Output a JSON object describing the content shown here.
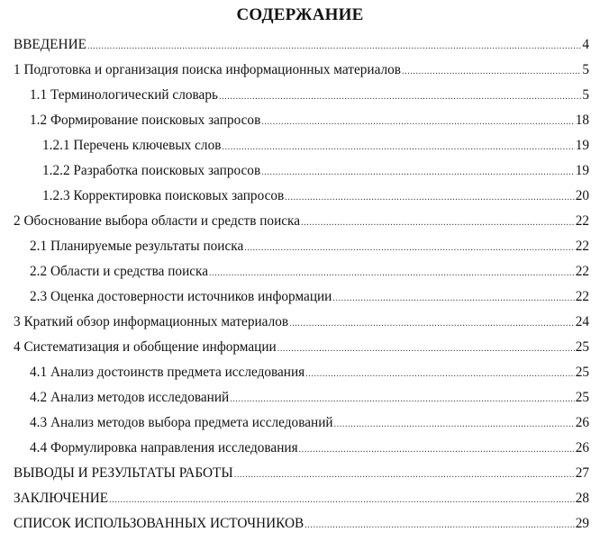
{
  "title": "СОДЕРЖАНИЕ",
  "entries": [
    {
      "label": "ВВЕДЕНИЕ",
      "page": "4",
      "level": 0
    },
    {
      "label": "1 Подготовка и организация поиска информационных материалов",
      "page": "5",
      "level": 0
    },
    {
      "label": "1.1 Терминологический словарь",
      "page": "5",
      "level": 1
    },
    {
      "label": "1.2 Формирование поисковых запросов",
      "page": "18",
      "level": 1
    },
    {
      "label": "1.2.1 Перечень ключевых слов",
      "page": "19",
      "level": 2
    },
    {
      "label": "1.2.2 Разработка поисковых запросов",
      "page": "19",
      "level": 2
    },
    {
      "label": "1.2.3 Корректировка поисковых запросов",
      "page": "20",
      "level": 2
    },
    {
      "label": "2 Обоснование выбора области и средств поиска",
      "page": "22",
      "level": 0
    },
    {
      "label": "2.1 Планируемые результаты поиска",
      "page": "22",
      "level": 1
    },
    {
      "label": "2.2 Области и средства поиска",
      "page": "22",
      "level": 1
    },
    {
      "label": "2.3 Оценка достоверности источников информации",
      "page": "22",
      "level": 1
    },
    {
      "label": "3 Краткий обзор информационных материалов",
      "page": "24",
      "level": 0
    },
    {
      "label": "4 Систематизация и обобщение информации",
      "page": "25",
      "level": 0
    },
    {
      "label": "4.1 Анализ достоинств предмета исследования",
      "page": "25",
      "level": 1
    },
    {
      "label": "4.2 Анализ методов исследований",
      "page": "25",
      "level": 1
    },
    {
      "label": "4.3 Анализ методов выбора предмета исследований",
      "page": "26",
      "level": 1
    },
    {
      "label": "4.4 Формулировка направления исследования",
      "page": "26",
      "level": 1
    },
    {
      "label": "ВЫВОДЫ И РЕЗУЛЬТАТЫ РАБОТЫ",
      "page": "27",
      "level": 0
    },
    {
      "label": "ЗАКЛЮЧЕНИЕ",
      "page": "28",
      "level": 0
    },
    {
      "label": "СПИСОК ИСПОЛЬЗОВАННЫХ ИСТОЧНИКОВ",
      "page": "29",
      "level": 0
    }
  ]
}
